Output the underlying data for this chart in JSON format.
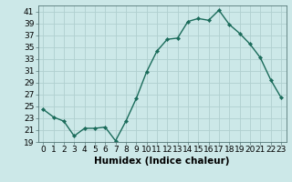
{
  "x": [
    0,
    1,
    2,
    3,
    4,
    5,
    6,
    7,
    8,
    9,
    10,
    11,
    12,
    13,
    14,
    15,
    16,
    17,
    18,
    19,
    20,
    21,
    22,
    23
  ],
  "y": [
    24.5,
    23.2,
    22.5,
    20.0,
    21.3,
    21.3,
    21.5,
    19.2,
    22.5,
    26.3,
    30.8,
    34.3,
    36.3,
    36.5,
    39.3,
    39.8,
    39.5,
    41.2,
    38.8,
    37.3,
    35.5,
    33.2,
    29.5,
    26.5
  ],
  "line_color": "#1a6b5a",
  "marker": "D",
  "marker_size": 2.2,
  "bg_color": "#cce8e8",
  "grid_color": "#b0d0d0",
  "xlabel": "Humidex (Indice chaleur)",
  "ylim": [
    19,
    42
  ],
  "xlim": [
    -0.5,
    23.5
  ],
  "yticks": [
    19,
    21,
    23,
    25,
    27,
    29,
    31,
    33,
    35,
    37,
    39,
    41
  ],
  "xtick_labels": [
    "0",
    "1",
    "2",
    "3",
    "4",
    "5",
    "6",
    "7",
    "8",
    "9",
    "10",
    "11",
    "12",
    "13",
    "14",
    "15",
    "16",
    "17",
    "18",
    "19",
    "20",
    "21",
    "22",
    "23"
  ],
  "xlabel_fontsize": 7.5,
  "tick_fontsize": 6.5
}
